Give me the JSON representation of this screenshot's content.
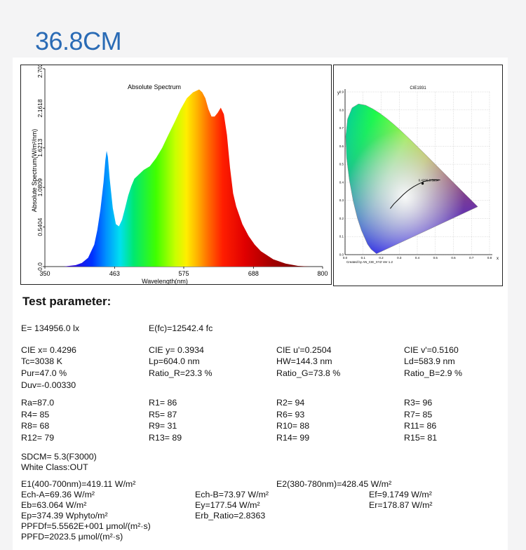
{
  "header": {
    "title": "36.8CM"
  },
  "chart_data": [
    {
      "type": "area",
      "title": "Absolute Spectrum",
      "xlabel": "Wavelength(nm)",
      "ylabel": "Absolute Spectrum(W/m²/nm)",
      "xlim": [
        350,
        800
      ],
      "ylim": [
        0,
        2.7022
      ],
      "xticks": [
        "350",
        "463",
        "575",
        "688",
        "800"
      ],
      "yticks": [
        "0.0",
        "0.5404",
        "1.0809",
        "1.6213",
        "2.1618",
        "2.7022"
      ],
      "fill": "wavelength-colored spectrum",
      "grid": false,
      "x": [
        380,
        400,
        410,
        420,
        430,
        435,
        440,
        445,
        448,
        450,
        452,
        455,
        460,
        465,
        470,
        475,
        480,
        485,
        490,
        495,
        500,
        510,
        520,
        530,
        540,
        550,
        560,
        570,
        580,
        590,
        600,
        605,
        610,
        615,
        620,
        625,
        630,
        635,
        640,
        645,
        650,
        655,
        660,
        670,
        680,
        690,
        700,
        720,
        740,
        760,
        780
      ],
      "y": [
        0.0,
        0.02,
        0.05,
        0.12,
        0.3,
        0.5,
        0.78,
        1.15,
        1.45,
        1.58,
        1.5,
        1.2,
        0.8,
        0.58,
        0.55,
        0.64,
        0.8,
        0.97,
        1.1,
        1.2,
        1.24,
        1.32,
        1.37,
        1.48,
        1.62,
        1.8,
        1.97,
        2.15,
        2.3,
        2.38,
        2.42,
        2.38,
        2.3,
        2.15,
        2.05,
        2.05,
        2.1,
        2.17,
        2.08,
        1.8,
        1.35,
        1.0,
        0.82,
        0.58,
        0.42,
        0.3,
        0.21,
        0.1,
        0.04,
        0.01,
        0.0
      ]
    },
    {
      "type": "scatter",
      "title": "CIE1931",
      "xlabel": "x",
      "ylabel": "y",
      "xlim": [
        0,
        0.8
      ],
      "ylim": [
        0,
        0.9
      ],
      "xticks": [
        "0.0",
        "0.1",
        "0.2",
        "0.3",
        "0.4",
        "0.5",
        "0.6",
        "0.7",
        "0.8"
      ],
      "yticks": [
        "0.0",
        "0.1",
        "0.2",
        "0.3",
        "0.4",
        "0.5",
        "0.6",
        "0.7",
        "0.8",
        "0.9"
      ],
      "series": [
        {
          "x": [
            0.4296
          ],
          "y": [
            0.3934
          ]
        }
      ],
      "point_label": "0.4296,0.3934",
      "credit": "Created by AN_CIE_XYZ Ver 1.2"
    }
  ],
  "section": {
    "heading": "Test parameter:"
  },
  "params": {
    "e": "E=  134956.0 lx",
    "efc": "E(fc)=12542.4 fc",
    "cie_x": "CIE x= 0.4296",
    "cie_y": "CIE y= 0.3934",
    "cie_u": "CIE u'=0.2504",
    "cie_v": "CIE v'=0.5160",
    "tc": "Tc=3038 K",
    "lp": "Lp=604.0 nm",
    "hw": "HW=144.3 nm",
    "ld": "Ld=583.9 nm",
    "pur": "Pur=47.0 %",
    "ratio_r": "Ratio_R=23.3 %",
    "ratio_g": "Ratio_G=73.8 %",
    "ratio_b": "Ratio_B=2.9 %",
    "duv": "Duv=-0.00330",
    "ra": "Ra=87.0",
    "r1": "R1= 86",
    "r2": "R2= 94",
    "r3": "R3= 96",
    "r4": "R4= 85",
    "r5": "R5= 87",
    "r6": "R6= 93",
    "r7": "R7= 85",
    "r8": "R8= 68",
    "r9": "R9= 31",
    "r10": "R10= 88",
    "r11": "R11= 86",
    "r12": "R12= 79",
    "r13": "R13= 89",
    "r14": "R14= 99",
    "r15": "R15= 81",
    "sdcm": "SDCM= 5.3(F3000)",
    "white": "White Class:OUT",
    "e1": "E1(400-700nm)=419.11 W/m²",
    "e2": "E2(380-780nm)=428.45 W/m²",
    "ech_a": "Ech-A=69.36 W/m²",
    "ech_b": "Ech-B=73.97 W/m²",
    "ef": "Ef=9.1749 W/m²",
    "eb": "Eb=63.064 W/m²",
    "ey": "Ey=177.54 W/m²",
    "er": "Er=178.87 W/m²",
    "ep": "Ep=374.39 Wphyto/m²",
    "erb": "Erb_Ratio=2.8363",
    "ppfdf": "PPFDf=5.5562E+001 μmol/(m²·s)",
    "ppfd": "PPFD=2023.5 μmol/(m²·s)"
  }
}
